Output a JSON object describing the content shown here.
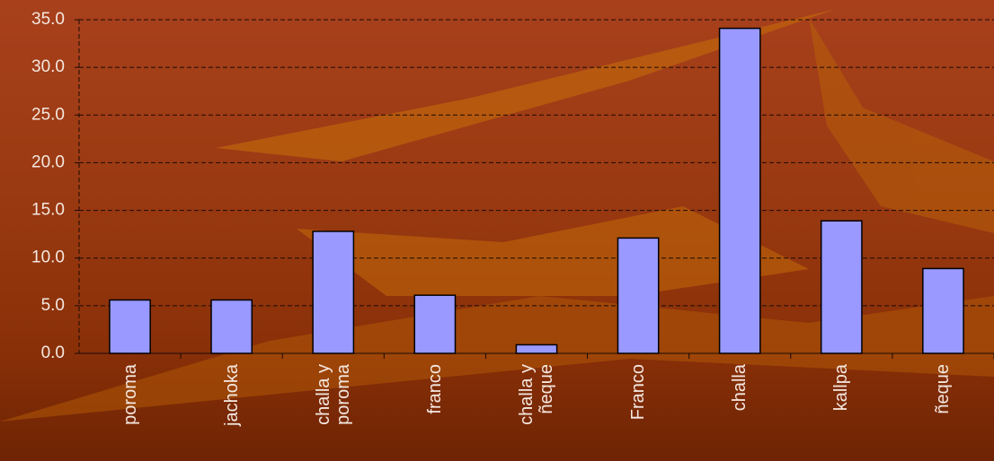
{
  "chart_data": {
    "type": "bar",
    "categories": [
      "poroma",
      "jachoka",
      "challa y poroma",
      "franco",
      "challa y ñeque",
      "Franco",
      "challa",
      "kallpa",
      "ñeque"
    ],
    "values": [
      5.6,
      5.6,
      12.8,
      6.1,
      0.9,
      12.1,
      34.1,
      13.9,
      8.9
    ],
    "color": "#9999ff",
    "ylim": [
      0,
      35
    ],
    "yticks": [
      {
        "value": 0,
        "label": "0.0"
      },
      {
        "value": 5,
        "label": "5.0"
      },
      {
        "value": 10,
        "label": "10.0"
      },
      {
        "value": 15,
        "label": "15.0"
      },
      {
        "value": 20,
        "label": "20.0"
      },
      {
        "value": 25,
        "label": "25.0"
      },
      {
        "value": 30,
        "label": "30.0"
      },
      {
        "value": 35,
        "label": "35.0"
      }
    ],
    "grid": true
  }
}
